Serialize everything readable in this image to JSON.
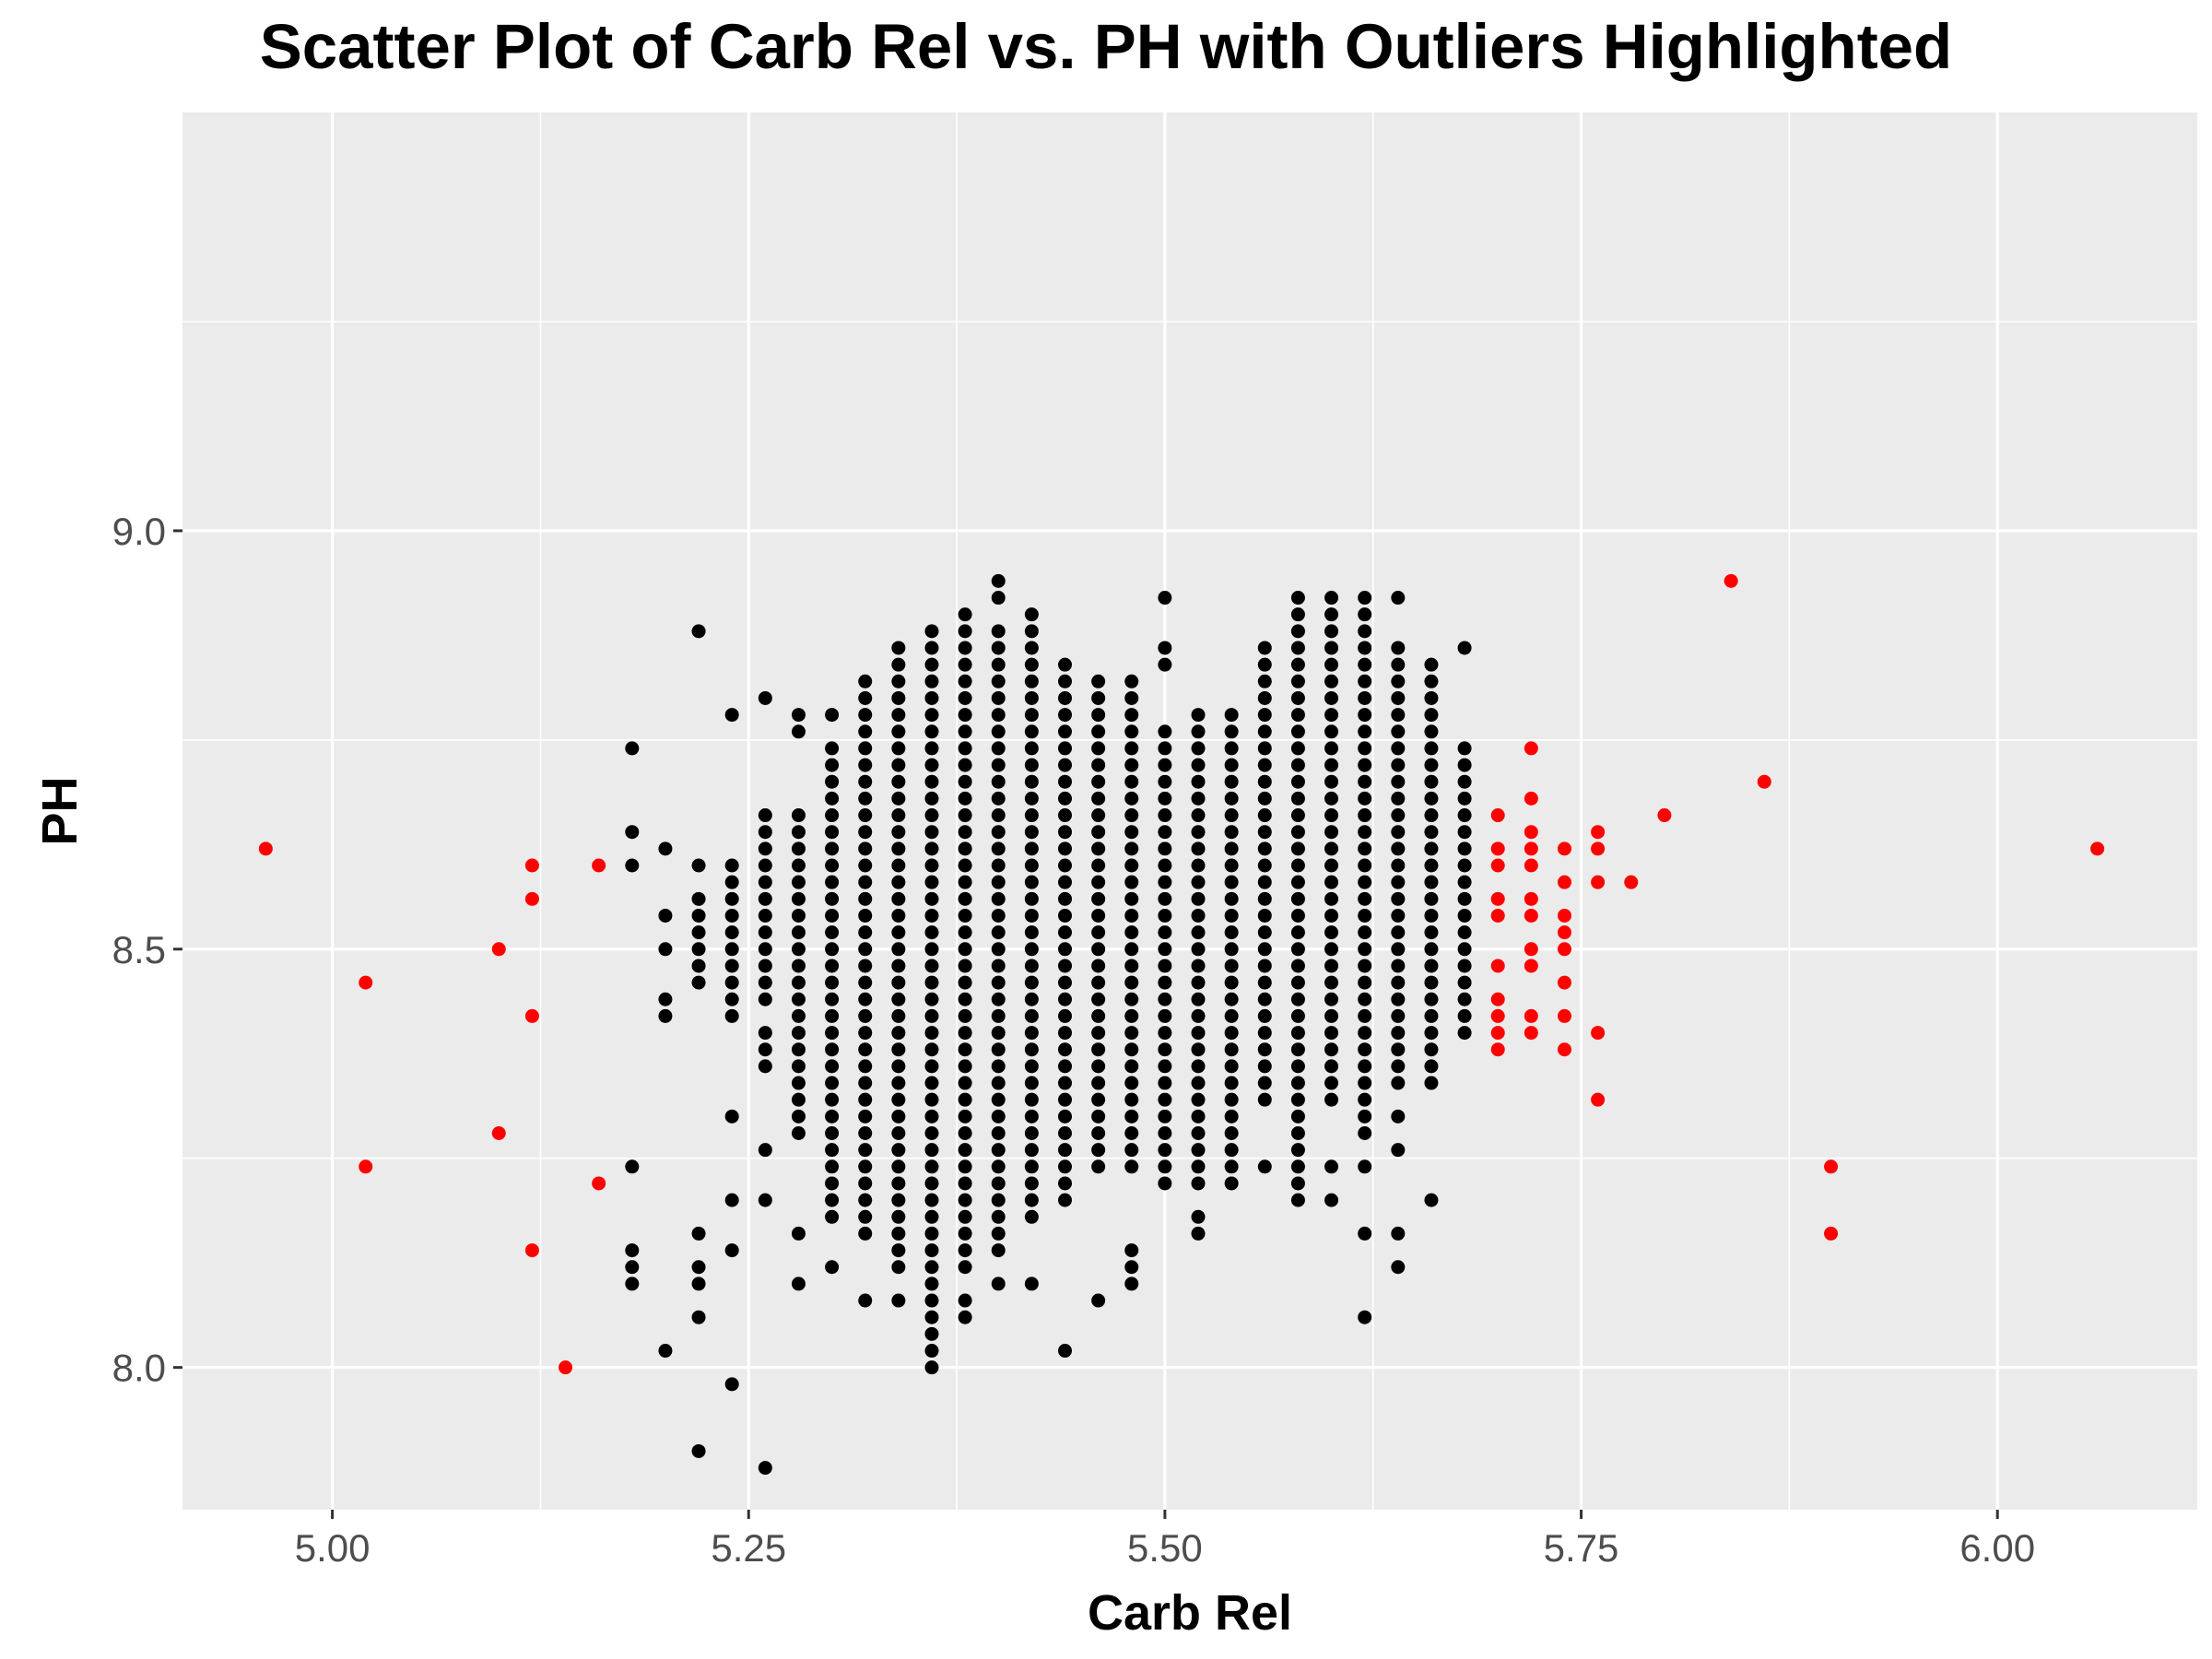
{
  "chart_data": {
    "type": "scatter",
    "title": "Scatter Plot of Carb Rel vs. PH with Outliers Highlighted",
    "xlabel": "Carb Rel",
    "ylabel": "PH",
    "xlim": [
      4.91,
      6.12
    ],
    "ylim": [
      7.83,
      9.5
    ],
    "x_ticks": [
      5.0,
      5.25,
      5.5,
      5.75,
      6.0
    ],
    "x_tick_labels": [
      "5.00",
      "5.25",
      "5.50",
      "5.75",
      "6.00"
    ],
    "y_ticks": [
      8.0,
      8.5,
      9.0
    ],
    "y_tick_labels": [
      "8.0",
      "8.5",
      "9.0"
    ],
    "grid": true,
    "background": "#ebebeb",
    "colors": {
      "normal": "#000000",
      "outlier": "#ff0000",
      "grid": "#ffffff"
    },
    "series": [
      {
        "color": "#000000",
        "columns": [
          {
            "x": 5.18,
            "y": [
              8.1,
              8.12,
              8.14,
              8.24,
              8.6,
              8.64,
              8.74
            ]
          },
          {
            "x": 5.2,
            "y": [
              8.02,
              8.42,
              8.44,
              8.5,
              8.54,
              8.62
            ]
          },
          {
            "x": 5.22,
            "y": [
              7.9,
              8.06,
              8.1,
              8.12,
              8.16,
              8.46,
              8.48,
              8.5,
              8.52,
              8.54,
              8.56,
              8.6,
              8.88
            ]
          },
          {
            "x": 5.24,
            "y": [
              7.98,
              8.14,
              8.2,
              8.3,
              8.42,
              8.44,
              8.46,
              8.48,
              8.5,
              8.52,
              8.54,
              8.56,
              8.58,
              8.6,
              8.78
            ]
          },
          {
            "x": 5.26,
            "y": [
              7.88,
              8.2,
              8.26,
              8.36,
              8.38,
              8.4,
              "8.44-8.66",
              8.8
            ]
          },
          {
            "x": 5.28,
            "y": [
              8.1,
              8.16,
              "8.28-8.66",
              8.76,
              8.78
            ]
          },
          {
            "x": 5.3,
            "y": [
              8.12,
              8.18,
              "8.20-8.74",
              8.78
            ]
          },
          {
            "x": 5.32,
            "y": [
              8.08,
              8.16,
              8.18,
              "8.20-8.82"
            ]
          },
          {
            "x": 5.34,
            "y": [
              8.08,
              "8.12-8.86"
            ]
          },
          {
            "x": 5.36,
            "y": [
              "8.00-8.88"
            ]
          },
          {
            "x": 5.38,
            "y": [
              8.06,
              8.08,
              "8.12-8.90"
            ]
          },
          {
            "x": 5.4,
            "y": [
              8.1,
              "8.14-8.88",
              8.92,
              8.94
            ]
          },
          {
            "x": 5.42,
            "y": [
              8.1,
              "8.18-8.90"
            ]
          },
          {
            "x": 5.44,
            "y": [
              8.02,
              "8.20-8.84"
            ]
          },
          {
            "x": 5.46,
            "y": [
              8.08,
              "8.24-8.82"
            ]
          },
          {
            "x": 5.48,
            "y": [
              8.1,
              8.12,
              8.14,
              "8.24-8.82"
            ]
          },
          {
            "x": 5.5,
            "y": [
              "8.22-8.76",
              8.84,
              8.86,
              8.92
            ]
          },
          {
            "x": 5.52,
            "y": [
              8.16,
              8.18,
              "8.22-8.78"
            ]
          },
          {
            "x": 5.54,
            "y": [
              "8.22-8.78"
            ]
          },
          {
            "x": 5.56,
            "y": [
              8.24,
              "8.32-8.86"
            ]
          },
          {
            "x": 5.58,
            "y": [
              8.2,
              8.22,
              "8.24-8.92"
            ]
          },
          {
            "x": 5.6,
            "y": [
              8.2,
              8.24,
              "8.32-8.92"
            ]
          },
          {
            "x": 5.62,
            "y": [
              8.06,
              8.16,
              8.24,
              "8.28-8.92"
            ]
          },
          {
            "x": 5.64,
            "y": [
              8.12,
              8.16,
              8.26,
              8.3,
              "8.34-8.86",
              8.92
            ]
          },
          {
            "x": 5.66,
            "y": [
              8.2,
              "8.34-8.84"
            ]
          },
          {
            "x": 5.68,
            "y": [
              "8.40-8.74",
              8.86
            ]
          }
        ]
      },
      {
        "color": "#ff0000",
        "points": [
          [
            4.96,
            8.62
          ],
          [
            5.02,
            8.46
          ],
          [
            5.02,
            8.24
          ],
          [
            5.1,
            8.5
          ],
          [
            5.1,
            8.28
          ],
          [
            5.12,
            8.6
          ],
          [
            5.12,
            8.56
          ],
          [
            5.12,
            8.42
          ],
          [
            5.12,
            8.14
          ],
          [
            5.14,
            8.0
          ],
          [
            5.16,
            8.6
          ],
          [
            5.16,
            8.22
          ],
          [
            5.7,
            8.38
          ],
          [
            5.7,
            8.4
          ],
          [
            5.7,
            8.42
          ],
          [
            5.7,
            8.44
          ],
          [
            5.7,
            8.48
          ],
          [
            5.7,
            8.54
          ],
          [
            5.7,
            8.56
          ],
          [
            5.7,
            8.6
          ],
          [
            5.7,
            8.62
          ],
          [
            5.7,
            8.66
          ],
          [
            5.72,
            8.4
          ],
          [
            5.72,
            8.42
          ],
          [
            5.72,
            8.48
          ],
          [
            5.72,
            8.5
          ],
          [
            5.72,
            8.54
          ],
          [
            5.72,
            8.56
          ],
          [
            5.72,
            8.6
          ],
          [
            5.72,
            8.62
          ],
          [
            5.72,
            8.64
          ],
          [
            5.72,
            8.68
          ],
          [
            5.72,
            8.74
          ],
          [
            5.74,
            8.38
          ],
          [
            5.74,
            8.42
          ],
          [
            5.74,
            8.46
          ],
          [
            5.74,
            8.5
          ],
          [
            5.74,
            8.52
          ],
          [
            5.74,
            8.54
          ],
          [
            5.74,
            8.58
          ],
          [
            5.74,
            8.62
          ],
          [
            5.76,
            8.32
          ],
          [
            5.76,
            8.4
          ],
          [
            5.76,
            8.58
          ],
          [
            5.76,
            8.62
          ],
          [
            5.76,
            8.64
          ],
          [
            5.78,
            8.58
          ],
          [
            5.8,
            8.66
          ],
          [
            5.84,
            8.94
          ],
          [
            5.86,
            8.7
          ],
          [
            5.9,
            8.24
          ],
          [
            5.9,
            8.16
          ],
          [
            6.06,
            8.62
          ]
        ]
      }
    ]
  }
}
